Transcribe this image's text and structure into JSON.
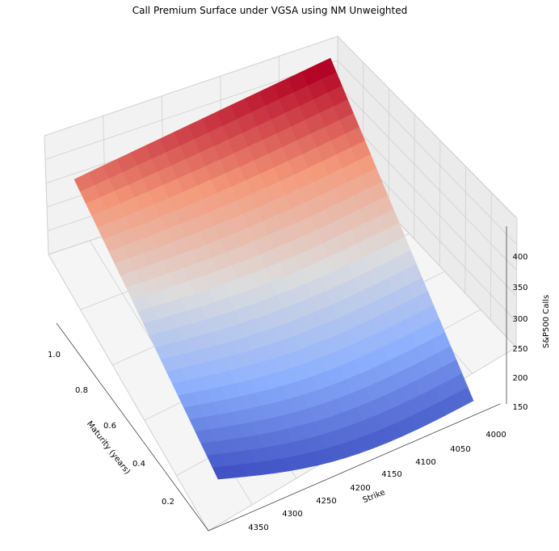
{
  "chart_data": {
    "type": "surface3d",
    "title": "Call Premium Surface under VGSA using NM Unweighted",
    "xlabel": "Strike",
    "ylabel": "Maturity (years)",
    "zlabel": "S&P500 Calls",
    "x_ticks": [
      "4000",
      "4050",
      "4100",
      "4150",
      "4200",
      "4250",
      "4300",
      "4350"
    ],
    "y_ticks": [
      "0.2",
      "0.4",
      "0.6",
      "0.8",
      "1.0"
    ],
    "z_ticks": [
      "150",
      "200",
      "250",
      "300",
      "350",
      "400"
    ],
    "strike_range": [
      3990,
      4380
    ],
    "maturity_range": [
      0.1,
      1.0
    ],
    "z_range": [
      150,
      430
    ],
    "colormap": "coolwarm",
    "grid": true,
    "surface_corners": [
      {
        "strike": 3990,
        "maturity": 0.1,
        "premium": 165
      },
      {
        "strike": 4380,
        "maturity": 0.1,
        "premium": 150
      },
      {
        "strike": 3990,
        "maturity": 1.0,
        "premium": 440
      },
      {
        "strike": 4380,
        "maturity": 1.0,
        "premium": 380
      }
    ]
  }
}
